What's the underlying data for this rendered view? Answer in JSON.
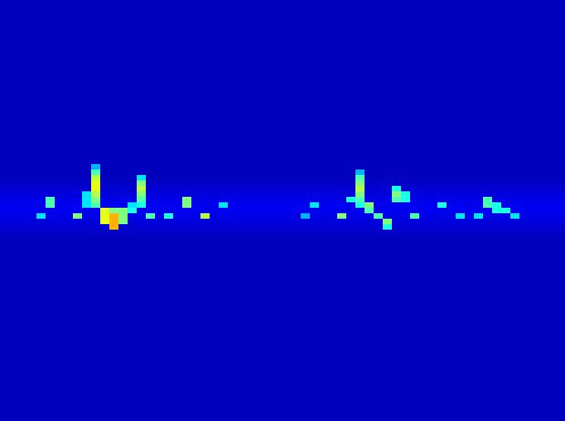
{
  "chart_data": {
    "type": "heatmap",
    "tick_labels": false,
    "xlim": [
      0,
      62
    ],
    "ylim": [
      0,
      77
    ],
    "zlim": [
      0,
      1
    ],
    "row_background": [
      0.06,
      0.06,
      0.06,
      0.06,
      0.06,
      0.06,
      0.06,
      0.06,
      0.06,
      0.06,
      0.06,
      0.06,
      0.06,
      0.06,
      0.06,
      0.06,
      0.06,
      0.06,
      0.06,
      0.06,
      0.06,
      0.06,
      0.06,
      0.06,
      0.06,
      0.06,
      0.06,
      0.06,
      0.06,
      0.06,
      0.06,
      0.06,
      0.06,
      0.07,
      0.08,
      0.09,
      0.1,
      0.11,
      0.11,
      0.1,
      0.09,
      0.08,
      0.07,
      0.06,
      0.06,
      0.06,
      0.06,
      0.06,
      0.06,
      0.06,
      0.06,
      0.06,
      0.06,
      0.06,
      0.06,
      0.06,
      0.06,
      0.06,
      0.06,
      0.06,
      0.06,
      0.06,
      0.06,
      0.06,
      0.06,
      0.06,
      0.06,
      0.06,
      0.06,
      0.06,
      0.06,
      0.06,
      0.06,
      0.06,
      0.06,
      0.06,
      0.06
    ],
    "cells": [
      [
        4,
        39,
        0.35
      ],
      [
        5,
        36,
        0.45
      ],
      [
        5,
        37,
        0.45
      ],
      [
        8,
        39,
        0.5
      ],
      [
        10,
        30,
        0.3
      ],
      [
        10,
        31,
        0.45
      ],
      [
        10,
        32,
        0.55
      ],
      [
        10,
        33,
        0.6
      ],
      [
        10,
        34,
        0.6
      ],
      [
        10,
        35,
        0.55
      ],
      [
        10,
        36,
        0.5
      ],
      [
        10,
        37,
        0.45
      ],
      [
        9,
        35,
        0.35
      ],
      [
        9,
        36,
        0.35
      ],
      [
        9,
        37,
        0.35
      ],
      [
        11,
        38,
        0.6
      ],
      [
        11,
        39,
        0.6
      ],
      [
        11,
        40,
        0.6
      ],
      [
        12,
        38,
        0.5
      ],
      [
        12,
        39,
        0.7
      ],
      [
        12,
        40,
        0.7
      ],
      [
        12,
        41,
        0.7
      ],
      [
        13,
        38,
        0.5
      ],
      [
        13,
        39,
        0.5
      ],
      [
        13,
        40,
        0.5
      ],
      [
        14,
        37,
        0.35
      ],
      [
        14,
        38,
        0.4
      ],
      [
        15,
        32,
        0.35
      ],
      [
        15,
        33,
        0.5
      ],
      [
        15,
        34,
        0.55
      ],
      [
        15,
        35,
        0.5
      ],
      [
        15,
        36,
        0.45
      ],
      [
        15,
        37,
        0.4
      ],
      [
        16,
        39,
        0.45
      ],
      [
        18,
        39,
        0.4
      ],
      [
        20,
        36,
        0.5
      ],
      [
        20,
        37,
        0.5
      ],
      [
        22,
        39,
        0.55
      ],
      [
        24,
        37,
        0.35
      ],
      [
        33,
        39,
        0.3
      ],
      [
        34,
        37,
        0.35
      ],
      [
        37,
        39,
        0.5
      ],
      [
        38,
        36,
        0.4
      ],
      [
        39,
        31,
        0.3
      ],
      [
        39,
        32,
        0.45
      ],
      [
        39,
        33,
        0.5
      ],
      [
        39,
        34,
        0.55
      ],
      [
        39,
        35,
        0.5
      ],
      [
        39,
        36,
        0.45
      ],
      [
        39,
        37,
        0.4
      ],
      [
        40,
        37,
        0.5
      ],
      [
        40,
        38,
        0.45
      ],
      [
        41,
        39,
        0.45
      ],
      [
        42,
        40,
        0.5
      ],
      [
        42,
        41,
        0.4
      ],
      [
        43,
        34,
        0.4
      ],
      [
        43,
        35,
        0.5
      ],
      [
        43,
        36,
        0.45
      ],
      [
        44,
        35,
        0.4
      ],
      [
        44,
        36,
        0.4
      ],
      [
        45,
        39,
        0.45
      ],
      [
        48,
        37,
        0.4
      ],
      [
        50,
        39,
        0.35
      ],
      [
        52,
        39,
        0.35
      ],
      [
        53,
        36,
        0.45
      ],
      [
        53,
        37,
        0.45
      ],
      [
        54,
        37,
        0.4
      ],
      [
        54,
        38,
        0.4
      ],
      [
        55,
        38,
        0.4
      ],
      [
        56,
        39,
        0.35
      ]
    ]
  }
}
